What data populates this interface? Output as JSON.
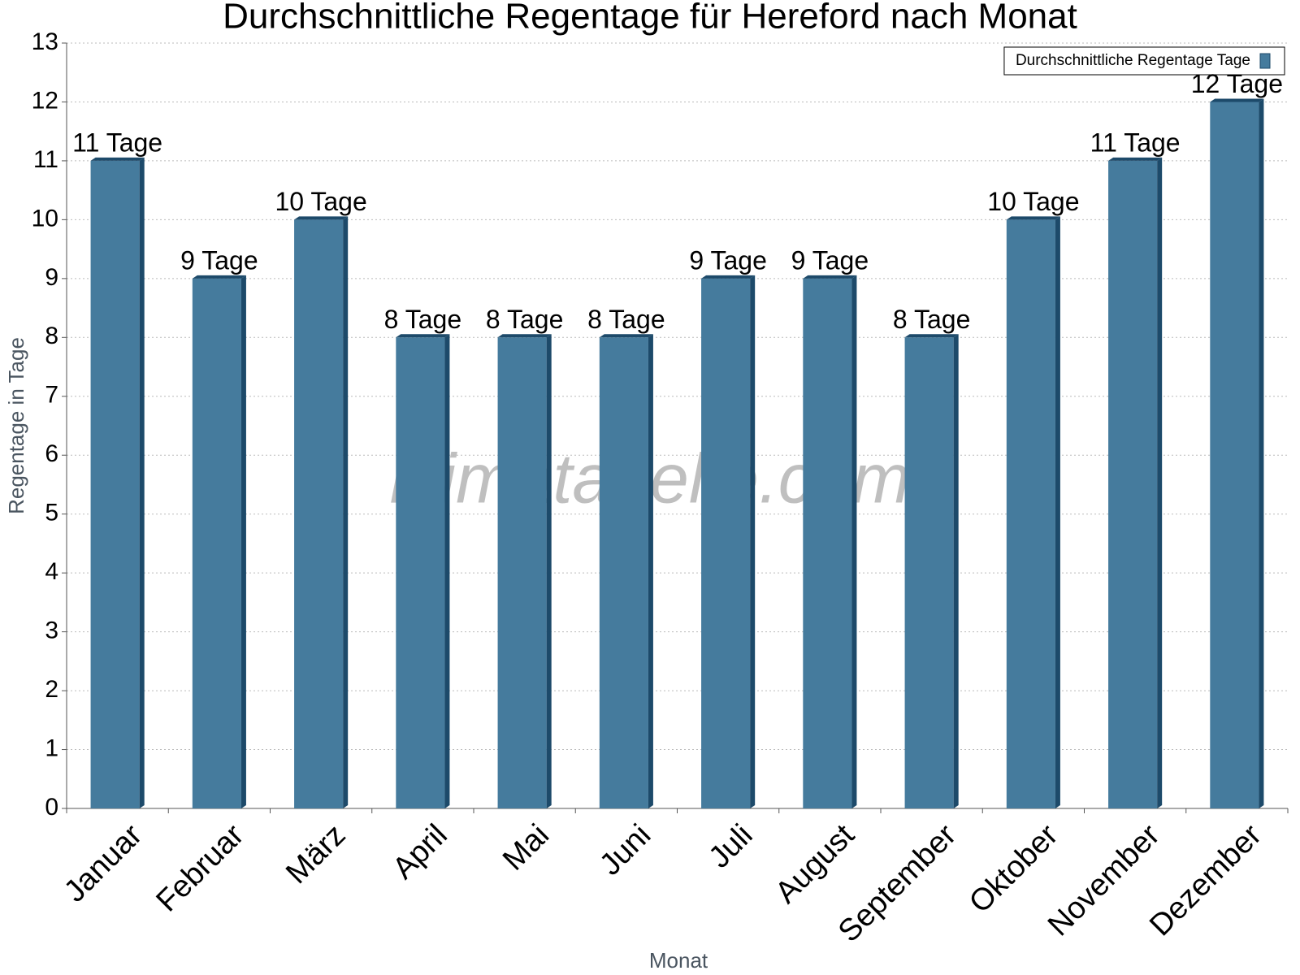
{
  "chart_data": {
    "type": "bar",
    "title": "Durchschnittliche Regentage für Hereford nach Monat",
    "x_label": "Monat",
    "y_label": "Regentage in Tage",
    "watermark": "klimatabelle.com",
    "categories": [
      "Januar",
      "Februar",
      "März",
      "April",
      "Mai",
      "Juni",
      "Juli",
      "August",
      "September",
      "Oktober",
      "November",
      "Dezember"
    ],
    "series": [
      {
        "name": "Durchschnittliche Regentage Tage",
        "color": "#457b9d",
        "values": [
          11,
          9,
          10,
          8,
          8,
          8,
          9,
          9,
          8,
          10,
          11,
          12
        ],
        "value_labels": [
          "11 Tage",
          "9 Tage",
          "10 Tage",
          "8 Tage",
          "8 Tage",
          "8 Tage",
          "9 Tage",
          "9 Tage",
          "8 Tage",
          "10 Tage",
          "11 Tage",
          "12 Tage"
        ]
      }
    ],
    "ylim": [
      0,
      13
    ],
    "yticks": [
      0,
      1,
      2,
      3,
      4,
      5,
      6,
      7,
      8,
      9,
      10,
      11,
      12,
      13
    ],
    "grid": true,
    "legend": "top-right"
  }
}
